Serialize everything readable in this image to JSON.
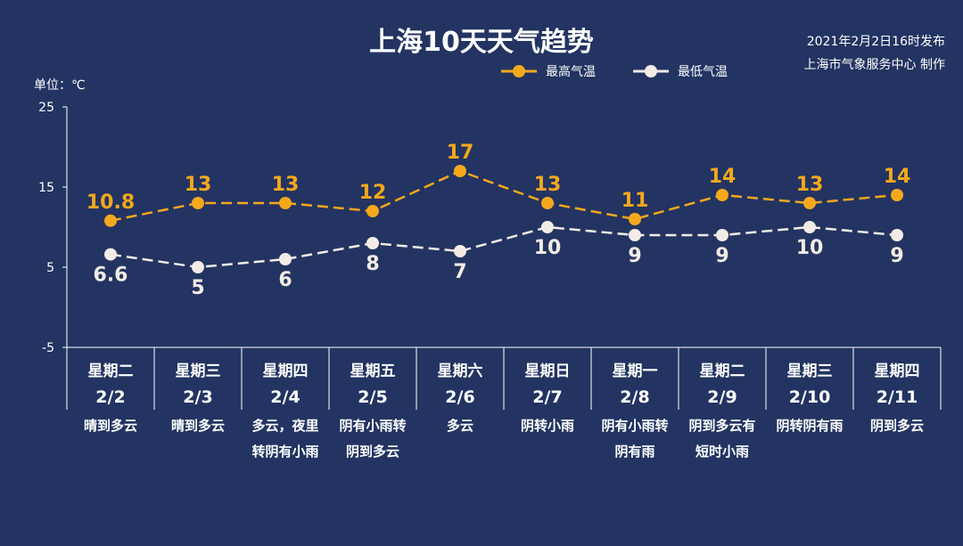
{
  "header": {
    "title": "上海10天天气趋势",
    "issued": "2021年2月2日16时发布",
    "producer": "上海市气象服务中心 制作",
    "unit": "单位：℃"
  },
  "chart_data": {
    "type": "line",
    "ylim": [
      -5,
      25
    ],
    "yticks": [
      25,
      15,
      5,
      -5
    ],
    "grid": false,
    "legend": "top-center",
    "categories": [
      "2/2",
      "2/3",
      "2/4",
      "2/5",
      "2/6",
      "2/7",
      "2/8",
      "2/9",
      "2/10",
      "2/11"
    ],
    "weekdays": [
      "星期二",
      "星期三",
      "星期四",
      "星期五",
      "星期六",
      "星期日",
      "星期一",
      "星期二",
      "星期三",
      "星期四"
    ],
    "weather": [
      [
        "晴到多云"
      ],
      [
        "晴到多云"
      ],
      [
        "多云，夜里",
        "转阴有小雨"
      ],
      [
        "阴有小雨转",
        "阴到多云"
      ],
      [
        "多云"
      ],
      [
        "阴转小雨"
      ],
      [
        "阴有小雨转",
        "阴有雨"
      ],
      [
        "阴到多云有",
        "短时小雨"
      ],
      [
        "阴转阴有雨"
      ],
      [
        "阴到多云"
      ]
    ],
    "series": [
      {
        "name": "最高气温",
        "color": "#f5a81c",
        "values": [
          10.8,
          13,
          13,
          12,
          17,
          13,
          11,
          14,
          13,
          14
        ]
      },
      {
        "name": "最低气温",
        "color": "#f3ece6",
        "values": [
          6.6,
          5,
          6,
          8,
          7,
          10,
          9,
          9,
          10,
          9
        ]
      }
    ]
  }
}
